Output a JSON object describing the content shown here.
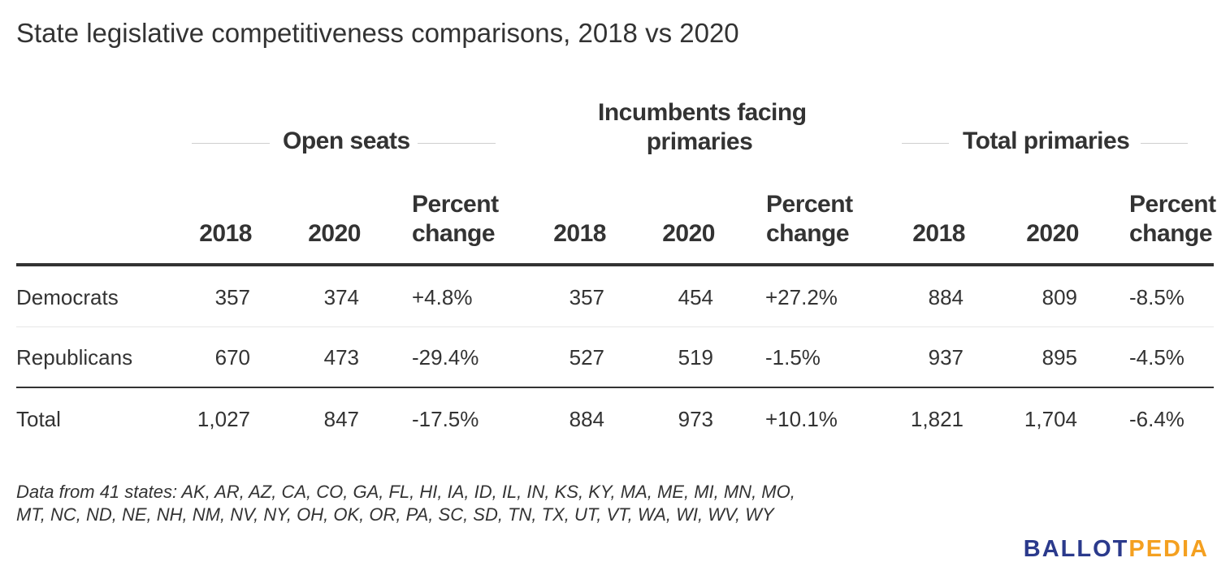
{
  "chart_data": {
    "type": "table",
    "title": "State legislative competitiveness comparisons, 2018 vs 2020",
    "column_groups": [
      {
        "label": "Open seats",
        "label_lines": [
          "Open seats"
        ]
      },
      {
        "label": "Incumbents facing primaries",
        "label_lines": [
          "Incumbents facing",
          "primaries"
        ]
      },
      {
        "label": "Total primaries",
        "label_lines": [
          "Total primaries"
        ]
      }
    ],
    "sub_columns": {
      "y2018": "2018",
      "y2020": "2020",
      "pct_line1": "Percent",
      "pct_line2": "change"
    },
    "rows": [
      {
        "label": "Democrats",
        "cells": [
          "357",
          "374",
          "+4.8%",
          "357",
          "454",
          "+27.2%",
          "884",
          "809",
          "-8.5%"
        ]
      },
      {
        "label": "Republicans",
        "cells": [
          "670",
          "473",
          "-29.4%",
          "527",
          "519",
          "-1.5%",
          "937",
          "895",
          "-4.5%"
        ]
      },
      {
        "label": "Total",
        "cells": [
          "1,027",
          "847",
          "-17.5%",
          "884",
          "973",
          "+10.1%",
          "1,821",
          "1,704",
          "-6.4%"
        ]
      }
    ],
    "colors": {
      "text": "#333333",
      "rule": "#333333",
      "logo_primary": "#2b3a8c",
      "logo_accent": "#f4a020"
    }
  },
  "notes": {
    "line1": "Data from 41 states: AK, AR, AZ, CA, CO, GA, FL, HI, IA, ID, IL, IN, KS, KY, MA, ME, MI, MN, MO,",
    "line2": "MT, NC, ND, NE, NH, NM, NV, NY, OH, OK, OR, PA, SC, SD, TN, TX, UT, VT, WA, WI, WV, WY"
  },
  "logo": {
    "part1": "BALLOT",
    "part2": "PEDIA"
  }
}
